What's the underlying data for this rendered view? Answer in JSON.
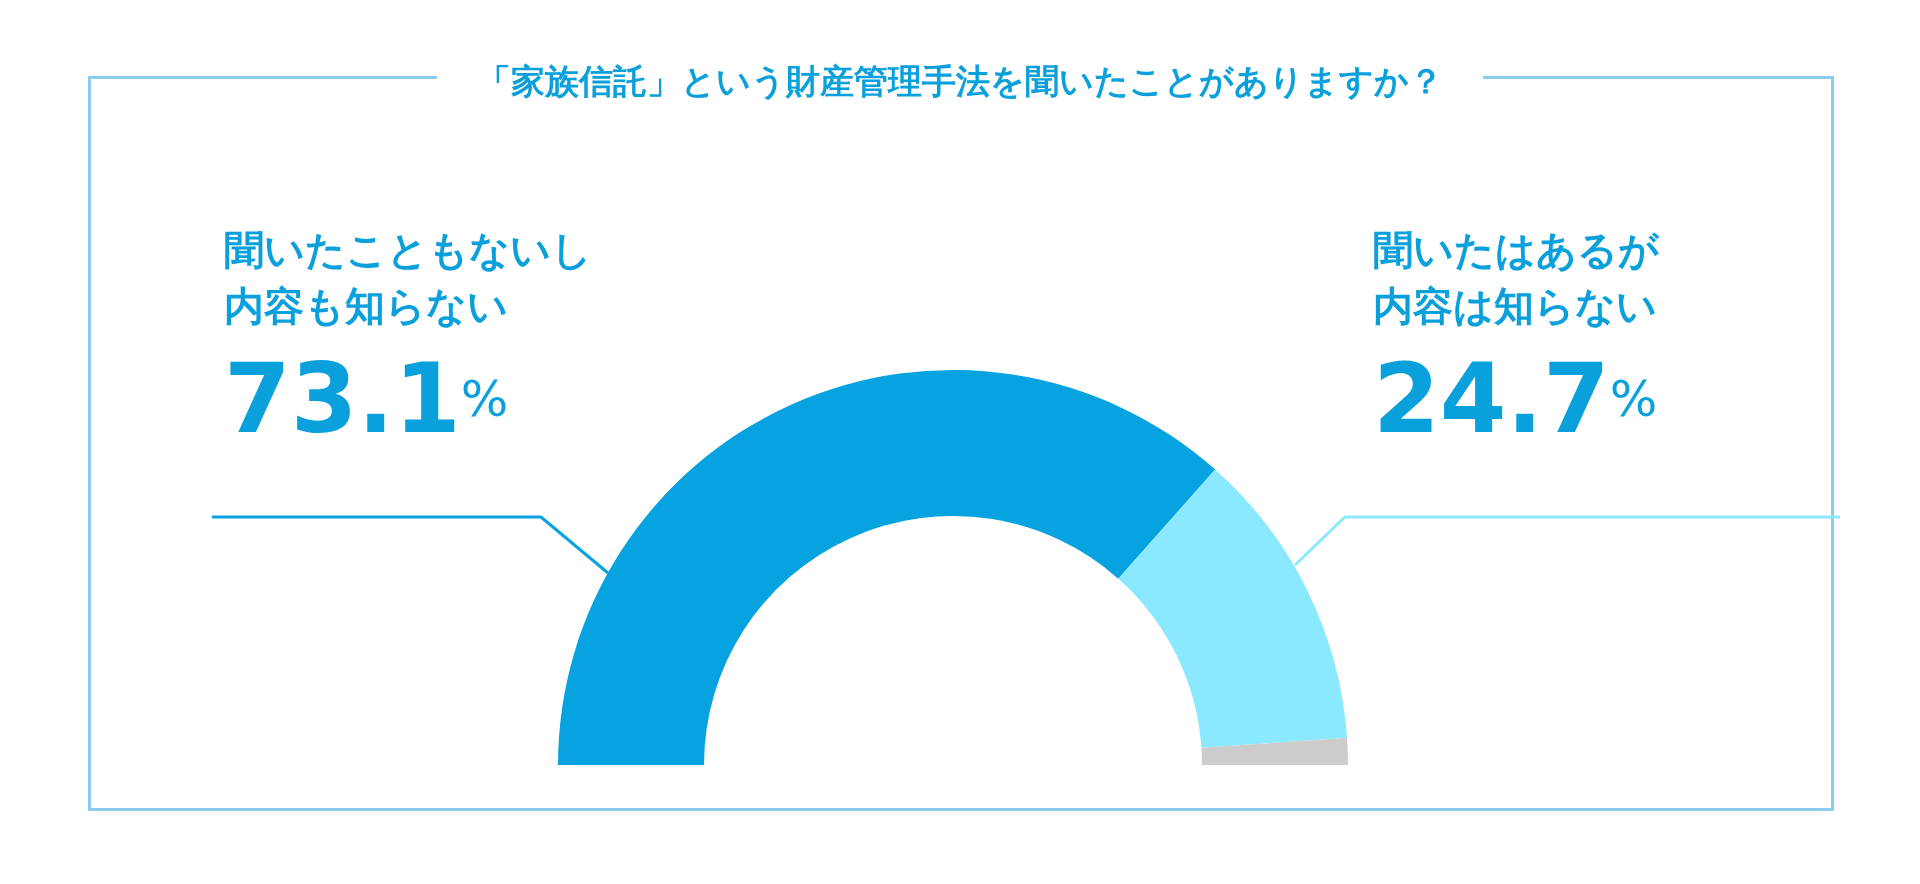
{
  "chart_data": {
    "type": "donut",
    "title": "「家族信託」という財産管理手法を聞いたことがありますか？",
    "categories": [
      "聞いたこともないし内容も知らない",
      "聞いたはあるが内容は知らない",
      null
    ],
    "values": [
      73.1,
      24.7,
      2.2
    ],
    "colors": [
      "#07a3e0",
      "#8ae8ff",
      "#cccccc"
    ],
    "value_labels": [
      "73.1%",
      "24.7%",
      null
    ]
  }
}
